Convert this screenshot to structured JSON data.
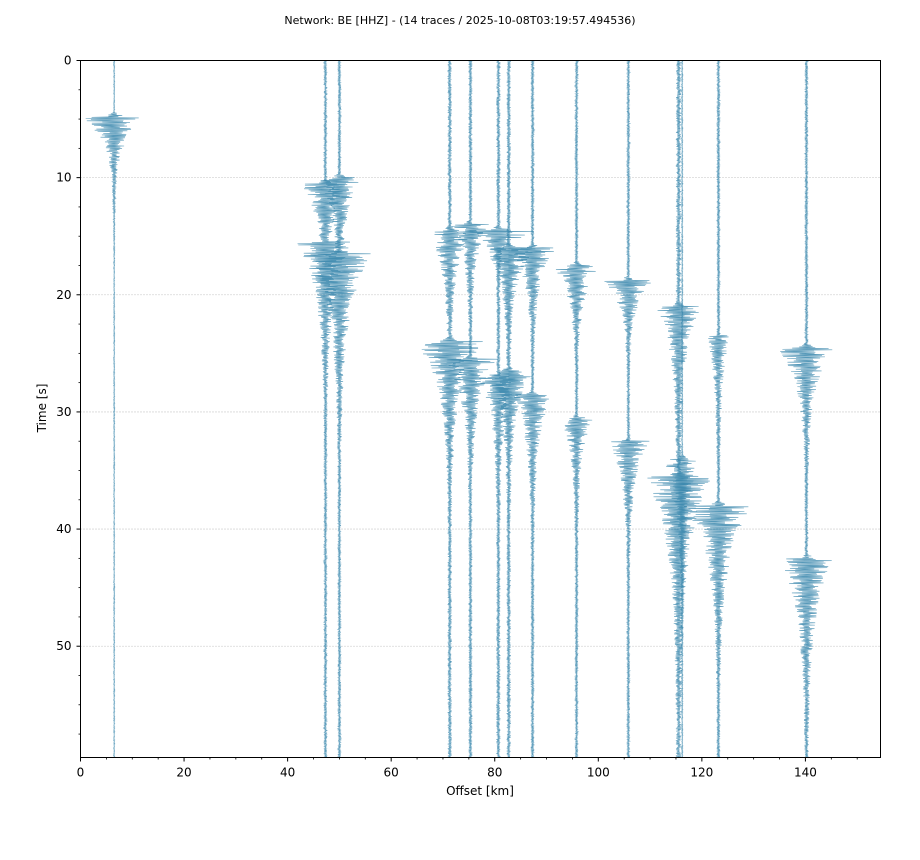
{
  "chart_data": {
    "type": "line",
    "title": "Network: BE [HHZ] - (14 traces / 2025-10-08T03:19:57.494536)",
    "xlabel": "Offset [km]",
    "ylabel": "Time [s]",
    "xlim": [
      0,
      154.5
    ],
    "ylim": [
      59.5,
      0
    ],
    "y_inverted": true,
    "xticks": [
      0,
      20,
      40,
      60,
      80,
      100,
      120,
      140
    ],
    "yticks": [
      0,
      10,
      20,
      30,
      40,
      50
    ],
    "grid": "horizontal dotted",
    "trace_color": "#3a87ad",
    "traces": [
      {
        "offset": 6.5,
        "events": [
          {
            "t": 4.8,
            "amp": 6.5,
            "dur": 2.0
          }
        ],
        "noise": 0.35
      },
      {
        "offset": 47.3,
        "events": [
          {
            "t": 10.5,
            "amp": 4.5,
            "dur": 3.0
          },
          {
            "t": 15.5,
            "amp": 5.5,
            "dur": 4.0
          }
        ],
        "noise": 0.9
      },
      {
        "offset": 50.0,
        "events": [
          {
            "t": 10.0,
            "amp": 4.0,
            "dur": 3.0
          },
          {
            "t": 16.5,
            "amp": 6.0,
            "dur": 4.5
          }
        ],
        "noise": 0.9
      },
      {
        "offset": 71.3,
        "events": [
          {
            "t": 14.5,
            "amp": 4.0,
            "dur": 3.0
          },
          {
            "t": 24.0,
            "amp": 6.5,
            "dur": 3.5
          }
        ],
        "noise": 1.2
      },
      {
        "offset": 75.3,
        "events": [
          {
            "t": 14.0,
            "amp": 3.5,
            "dur": 2.5
          },
          {
            "t": 25.5,
            "amp": 5.0,
            "dur": 3.0
          }
        ],
        "noise": 1.1
      },
      {
        "offset": 80.7,
        "events": [
          {
            "t": 14.5,
            "amp": 7.5,
            "dur": 1.0
          },
          {
            "t": 27.0,
            "amp": 4.0,
            "dur": 3.0
          }
        ],
        "noise": 1.2
      },
      {
        "offset": 82.7,
        "events": [
          {
            "t": 16.0,
            "amp": 5.0,
            "dur": 2.5
          },
          {
            "t": 26.5,
            "amp": 4.5,
            "dur": 3.0
          }
        ],
        "noise": 1.2
      },
      {
        "offset": 87.3,
        "events": [
          {
            "t": 16.0,
            "amp": 4.5,
            "dur": 2.5
          },
          {
            "t": 28.5,
            "amp": 3.5,
            "dur": 3.5
          }
        ],
        "noise": 1.0
      },
      {
        "offset": 95.8,
        "events": [
          {
            "t": 17.5,
            "amp": 4.5,
            "dur": 2.5
          },
          {
            "t": 30.5,
            "amp": 3.0,
            "dur": 3.0
          }
        ],
        "noise": 0.9
      },
      {
        "offset": 105.8,
        "events": [
          {
            "t": 18.8,
            "amp": 5.0,
            "dur": 2.0
          },
          {
            "t": 32.5,
            "amp": 4.0,
            "dur": 3.0
          }
        ],
        "noise": 0.9
      },
      {
        "offset": 115.5,
        "events": [
          {
            "t": 21.0,
            "amp": 4.0,
            "dur": 3.5
          },
          {
            "t": 35.5,
            "amp": 6.5,
            "dur": 5.0
          }
        ],
        "noise": 1.5
      },
      {
        "offset": 116.2,
        "events": [
          {
            "t": 34.0,
            "amp": 3.5,
            "dur": 4.0
          }
        ],
        "noise": 0.4
      },
      {
        "offset": 123.2,
        "events": [
          {
            "t": 23.5,
            "amp": 2.0,
            "dur": 3.5
          },
          {
            "t": 38.0,
            "amp": 6.5,
            "dur": 4.0
          }
        ],
        "noise": 1.0
      },
      {
        "offset": 140.2,
        "events": [
          {
            "t": 24.5,
            "amp": 5.5,
            "dur": 3.0
          },
          {
            "t": 42.5,
            "amp": 5.0,
            "dur": 4.5
          }
        ],
        "noise": 1.0
      }
    ]
  }
}
